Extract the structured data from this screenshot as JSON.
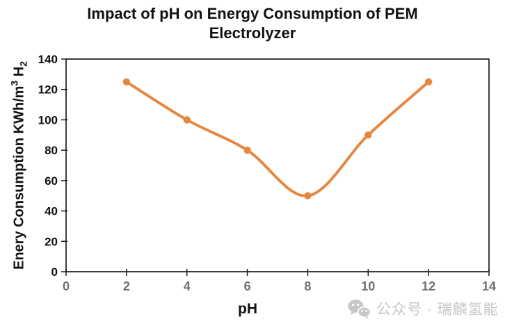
{
  "title": "Impact of pH on Energy Consumption of PEM Electrolyzer",
  "colors": {
    "line": "#E58740",
    "axis": "#1c1c1c",
    "x_tick_labels": "#6f6f6f",
    "y_tick_labels": "#111111",
    "watermark": "#c7c7c7"
  },
  "watermark": {
    "icon": "wechat-icon",
    "text": "公众号 · 瑞麟氢能"
  },
  "chart_data": {
    "type": "line",
    "title": "Impact of pH on Energy Consumption of PEM Electrolyzer",
    "xlabel": "pH",
    "ylabel": "Enery Consumption KWh/m³ H₂",
    "ylabel_parts": {
      "prefix": "Enery Consumption KWh/m",
      "sup": "3",
      "mid": " H",
      "sub": "2"
    },
    "series": [
      {
        "name": "Energy Consumption",
        "x": [
          2,
          4,
          6,
          8,
          10,
          12
        ],
        "y": [
          125,
          100,
          80,
          50,
          90,
          125
        ]
      }
    ],
    "x_ticks": [
      0,
      2,
      4,
      6,
      8,
      10,
      12,
      14
    ],
    "y_ticks": [
      0,
      20,
      40,
      60,
      80,
      100,
      120,
      140
    ],
    "xlim": [
      0,
      14
    ],
    "ylim": [
      0,
      140
    ],
    "grid": false,
    "legend": false,
    "line_style": "smooth",
    "marker": "circle"
  }
}
